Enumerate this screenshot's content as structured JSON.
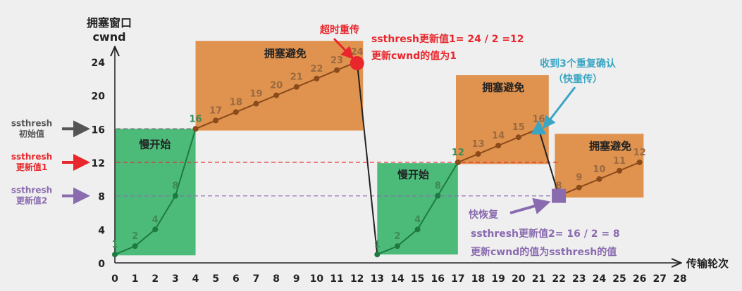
{
  "chart_data": {
    "type": "line",
    "ylabel_line1": "拥塞窗口",
    "ylabel_line2": "cwnd",
    "xlabel": "传输轮次",
    "x_ticks": [
      0,
      1,
      2,
      3,
      4,
      5,
      6,
      7,
      8,
      9,
      10,
      11,
      12,
      13,
      14,
      15,
      16,
      17,
      18,
      19,
      20,
      21,
      22,
      23,
      24,
      25,
      26,
      27,
      28
    ],
    "y_ticks": [
      0,
      4,
      8,
      12,
      16,
      20,
      24
    ],
    "xlim": [
      0,
      28
    ],
    "ylim": [
      0,
      24
    ],
    "series": [
      {
        "phase": "慢开始",
        "color": "#1e7a40",
        "x": [
          0,
          1,
          2,
          3,
          4
        ],
        "y": [
          1,
          2,
          4,
          8,
          16
        ]
      },
      {
        "phase": "拥塞避免",
        "color": "#8a4a1a",
        "x": [
          4,
          5,
          6,
          7,
          8,
          9,
          10,
          11,
          12
        ],
        "y": [
          16,
          17,
          18,
          19,
          20,
          21,
          22,
          23,
          24
        ]
      },
      {
        "phase": "慢开始",
        "color": "#1e7a40",
        "x": [
          13,
          14,
          15,
          16,
          17
        ],
        "y": [
          1,
          2,
          4,
          8,
          12
        ]
      },
      {
        "phase": "拥塞避免",
        "color": "#8a4a1a",
        "x": [
          17,
          18,
          19,
          20,
          21
        ],
        "y": [
          12,
          13,
          14,
          15,
          16
        ]
      },
      {
        "phase": "拥塞避免",
        "color": "#8a4a1a",
        "x": [
          22,
          23,
          24,
          25,
          26
        ],
        "y": [
          8,
          9,
          10,
          11,
          12
        ]
      }
    ],
    "drops": [
      {
        "from": [
          12,
          24
        ],
        "to": [
          13,
          1
        ]
      },
      {
        "from": [
          21,
          16
        ],
        "to": [
          22,
          8
        ]
      }
    ],
    "thresholds": [
      {
        "value": 16,
        "color": "#555555",
        "label1": "ssthresh",
        "label2": "初始值"
      },
      {
        "value": 12,
        "color": "#e8262b",
        "label1": "ssthresh",
        "label2": "更新值1"
      },
      {
        "value": 8,
        "color": "#8a6bb0",
        "label1": "ssthresh",
        "label2": "更新值2"
      }
    ],
    "regions": [
      {
        "label": "慢开始",
        "color": "#4cbb7a"
      },
      {
        "label": "拥塞避免",
        "color": "#e0924f"
      },
      {
        "label": "慢开始",
        "color": "#4cbb7a"
      },
      {
        "label": "拥塞避免",
        "color": "#e0924f"
      },
      {
        "label": "拥塞避免",
        "color": "#e0924f"
      }
    ],
    "annotations": {
      "timeout": {
        "label": "超时重传",
        "color": "#e8262b"
      },
      "timeout_note1": "ssthresh更新值1= 24 / 2 =12",
      "timeout_note2": "更新cwnd的值为1",
      "dup_ack_1": "收到3个重复确认",
      "dup_ack_2": "（快重传）",
      "dup_ack_color": "#3aa6c4",
      "fast_recovery": "快恢复",
      "fast_recovery_note1": "ssthresh更新值2= 16 / 2 = 8",
      "fast_recovery_note2": "更新cwnd的值为ssthresh的值",
      "fast_recovery_color": "#8a6bb0"
    }
  }
}
